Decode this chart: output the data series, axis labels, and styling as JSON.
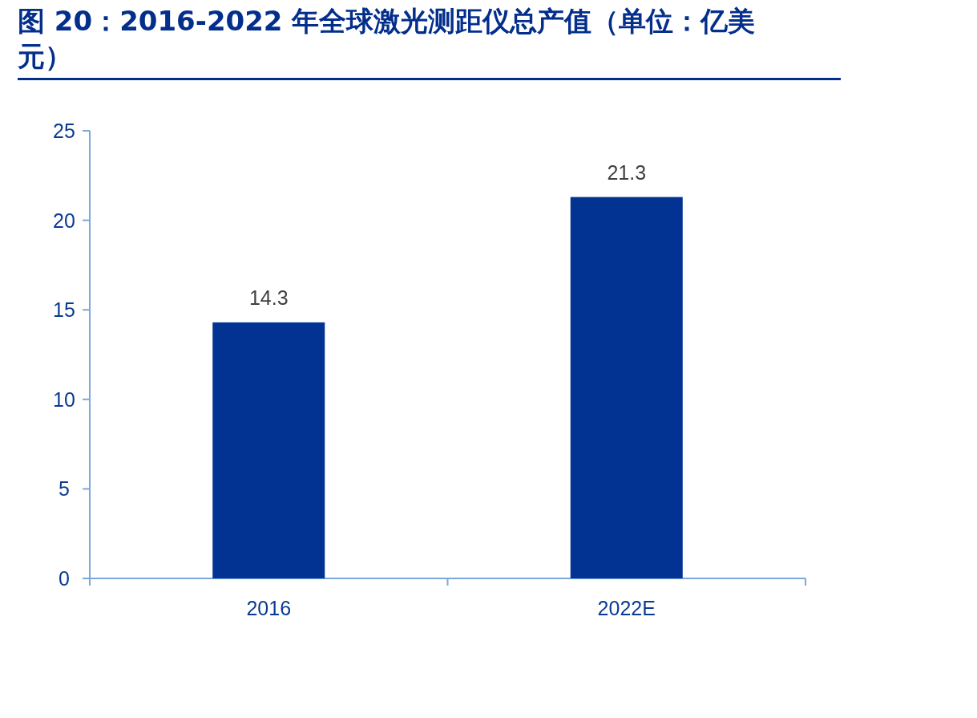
{
  "chart_data": {
    "type": "bar",
    "title": "图 20：2016-2022 年全球激光测距仪总产值（单位：亿美元）",
    "categories": [
      "2016",
      "2022E"
    ],
    "values": [
      14.3,
      21.3
    ],
    "color": "#023393",
    "ylim": [
      0,
      25
    ],
    "yticks": [
      0,
      5,
      10,
      15,
      20,
      25
    ],
    "data_labels": true,
    "grid": false
  }
}
